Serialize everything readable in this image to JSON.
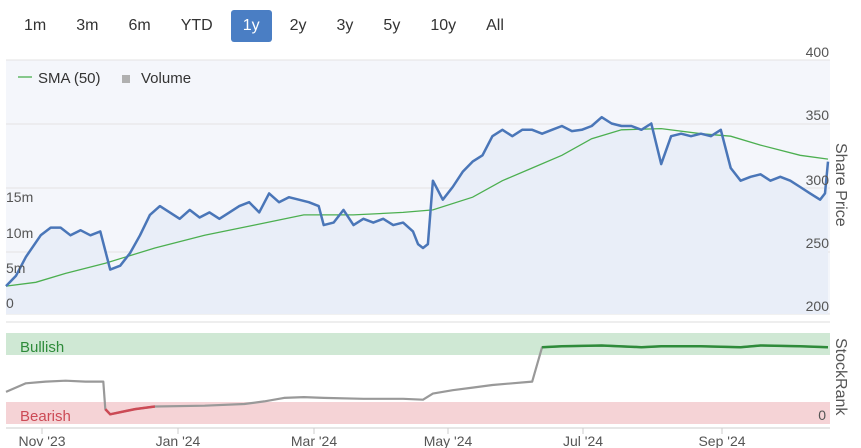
{
  "range_selector": {
    "items": [
      "1m",
      "3m",
      "6m",
      "YTD",
      "1y",
      "2y",
      "3y",
      "5y",
      "10y",
      "All"
    ],
    "active": "1y"
  },
  "legend": {
    "sma_label": "SMA (50)",
    "volume_label": "Volume",
    "sma_color": "#4caf50",
    "volume_color": "#b0b0b0"
  },
  "colors": {
    "price": "#4a76b8",
    "stockrank": "#999999",
    "bullish_line": "#2e8b3a",
    "bearish_line": "#cc4a55",
    "bullish_band": "#cfe8d4",
    "bearish_band": "#f5d3d6"
  },
  "price_panel": {
    "right_axis_title": "Share Price",
    "right_ticks": [
      "400",
      "350",
      "300",
      "250",
      "200"
    ],
    "left_ticks": [
      "15m",
      "10m",
      "5m",
      "0"
    ]
  },
  "rank_panel": {
    "right_axis_title": "StockRank",
    "bullish_label": "Bullish",
    "bearish_label": "Bearish",
    "bottom_tick": "0"
  },
  "x_axis": {
    "labels": [
      "Nov '23",
      "Jan '24",
      "Mar '24",
      "May '24",
      "Jul '24",
      "Sep '24"
    ]
  },
  "chart_data": {
    "type": "line",
    "price_series": {
      "ylim": [
        200,
        400
      ],
      "points": [
        [
          0,
          222
        ],
        [
          10,
          230
        ],
        [
          20,
          245
        ],
        [
          35,
          262
        ],
        [
          45,
          268
        ],
        [
          55,
          268
        ],
        [
          65,
          262
        ],
        [
          75,
          266
        ],
        [
          85,
          262
        ],
        [
          95,
          265
        ],
        [
          105,
          235
        ],
        [
          115,
          238
        ],
        [
          125,
          248
        ],
        [
          135,
          262
        ],
        [
          145,
          278
        ],
        [
          155,
          285
        ],
        [
          165,
          280
        ],
        [
          175,
          275
        ],
        [
          185,
          282
        ],
        [
          195,
          276
        ],
        [
          205,
          280
        ],
        [
          215,
          275
        ],
        [
          225,
          280
        ],
        [
          235,
          285
        ],
        [
          245,
          288
        ],
        [
          255,
          280
        ],
        [
          265,
          295
        ],
        [
          275,
          288
        ],
        [
          285,
          292
        ],
        [
          295,
          290
        ],
        [
          305,
          288
        ],
        [
          315,
          285
        ],
        [
          320,
          270
        ],
        [
          330,
          272
        ],
        [
          340,
          282
        ],
        [
          350,
          270
        ],
        [
          360,
          275
        ],
        [
          370,
          272
        ],
        [
          380,
          275
        ],
        [
          390,
          270
        ],
        [
          400,
          272
        ],
        [
          410,
          265
        ],
        [
          415,
          255
        ],
        [
          420,
          252
        ],
        [
          425,
          255
        ],
        [
          430,
          305
        ],
        [
          440,
          290
        ],
        [
          450,
          300
        ],
        [
          460,
          312
        ],
        [
          470,
          320
        ],
        [
          480,
          325
        ],
        [
          490,
          340
        ],
        [
          500,
          345
        ],
        [
          510,
          340
        ],
        [
          520,
          345
        ],
        [
          530,
          345
        ],
        [
          540,
          342
        ],
        [
          550,
          345
        ],
        [
          560,
          348
        ],
        [
          570,
          344
        ],
        [
          580,
          345
        ],
        [
          590,
          348
        ],
        [
          600,
          355
        ],
        [
          610,
          350
        ],
        [
          620,
          348
        ],
        [
          630,
          348
        ],
        [
          640,
          345
        ],
        [
          650,
          350
        ],
        [
          660,
          318
        ],
        [
          670,
          340
        ],
        [
          680,
          342
        ],
        [
          690,
          340
        ],
        [
          700,
          342
        ],
        [
          710,
          340
        ],
        [
          720,
          345
        ],
        [
          730,
          315
        ],
        [
          740,
          305
        ],
        [
          750,
          308
        ],
        [
          760,
          310
        ],
        [
          770,
          305
        ],
        [
          780,
          308
        ],
        [
          790,
          305
        ],
        [
          800,
          300
        ],
        [
          810,
          295
        ],
        [
          820,
          290
        ],
        [
          825,
          295
        ],
        [
          828,
          320
        ]
      ]
    },
    "sma_series": {
      "ylim": [
        200,
        400
      ],
      "points": [
        [
          0,
          222
        ],
        [
          30,
          225
        ],
        [
          60,
          232
        ],
        [
          100,
          240
        ],
        [
          150,
          252
        ],
        [
          200,
          262
        ],
        [
          250,
          270
        ],
        [
          300,
          278
        ],
        [
          350,
          278
        ],
        [
          400,
          280
        ],
        [
          430,
          282
        ],
        [
          470,
          292
        ],
        [
          500,
          305
        ],
        [
          530,
          315
        ],
        [
          560,
          325
        ],
        [
          590,
          338
        ],
        [
          620,
          345
        ],
        [
          660,
          346
        ],
        [
          700,
          342
        ],
        [
          730,
          340
        ],
        [
          760,
          333
        ],
        [
          800,
          325
        ],
        [
          828,
          322
        ]
      ]
    },
    "volume_series": {
      "ylim": [
        0,
        20
      ],
      "spikes": [
        [
          328,
          3.9
        ],
        [
          318,
          1.5
        ],
        [
          430,
          1.6
        ],
        [
          440,
          1.1
        ],
        [
          495,
          0.8
        ],
        [
          750,
          1.4
        ],
        [
          520,
          0.9
        ]
      ]
    },
    "stockrank_series": {
      "ylim": [
        0,
        100
      ],
      "points": [
        [
          0,
          28
        ],
        [
          20,
          38
        ],
        [
          40,
          40
        ],
        [
          60,
          41
        ],
        [
          80,
          40
        ],
        [
          98,
          40
        ],
        [
          100,
          8
        ],
        [
          105,
          2
        ],
        [
          130,
          8
        ],
        [
          150,
          11
        ],
        [
          200,
          12
        ],
        [
          240,
          14
        ],
        [
          260,
          17
        ],
        [
          280,
          21
        ],
        [
          300,
          22
        ],
        [
          320,
          21
        ],
        [
          360,
          20
        ],
        [
          400,
          20
        ],
        [
          420,
          19
        ],
        [
          430,
          26
        ],
        [
          450,
          30
        ],
        [
          470,
          33
        ],
        [
          490,
          36
        ],
        [
          510,
          38
        ],
        [
          530,
          40
        ],
        [
          540,
          80
        ],
        [
          560,
          81
        ],
        [
          600,
          82
        ],
        [
          640,
          80
        ],
        [
          660,
          81
        ],
        [
          700,
          81
        ],
        [
          740,
          80
        ],
        [
          760,
          82
        ],
        [
          800,
          81
        ],
        [
          828,
          80
        ]
      ]
    }
  }
}
